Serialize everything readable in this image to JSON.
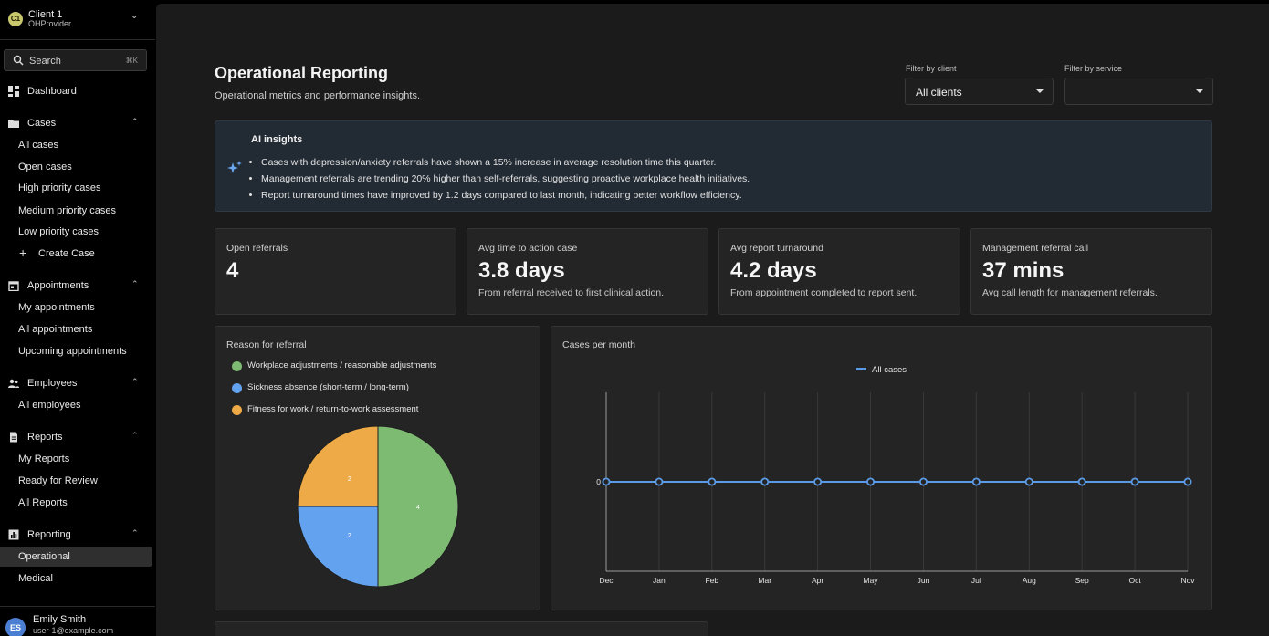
{
  "client": {
    "badge": "C1",
    "name": "Client 1",
    "provider": "OHProvider"
  },
  "search": {
    "label": "Search",
    "shortcut": "⌘K"
  },
  "nav": {
    "dashboard": "Dashboard",
    "cases": {
      "label": "Cases",
      "items": [
        "All cases",
        "Open cases",
        "High priority cases",
        "Medium priority cases",
        "Low priority cases",
        "Create Case"
      ]
    },
    "appointments": {
      "label": "Appointments",
      "items": [
        "My appointments",
        "All appointments",
        "Upcoming appointments"
      ]
    },
    "employees": {
      "label": "Employees",
      "items": [
        "All employees"
      ]
    },
    "reports": {
      "label": "Reports",
      "items": [
        "My Reports",
        "Ready for Review",
        "All Reports"
      ]
    },
    "reporting": {
      "label": "Reporting",
      "items": [
        "Operational",
        "Medical"
      ]
    }
  },
  "user": {
    "initials": "ES",
    "name": "Emily Smith",
    "email": "user-1@example.com"
  },
  "page": {
    "title": "Operational Reporting",
    "subtitle": "Operational metrics and performance insights."
  },
  "filters": {
    "client": {
      "label": "Filter by client",
      "value": "All clients"
    },
    "service": {
      "label": "Filter by service",
      "value": ""
    }
  },
  "insights": {
    "title": "AI insights",
    "items": [
      "Cases with depression/anxiety referrals have shown a 15% increase in average resolution time this quarter.",
      "Management referrals are trending 20% higher than self-referrals, suggesting proactive workplace health initiatives.",
      "Report turnaround times have improved by 1.2 days compared to last month, indicating better workflow efficiency."
    ]
  },
  "kpis": [
    {
      "label": "Open referrals",
      "value": "4",
      "desc": ""
    },
    {
      "label": "Avg time to action case",
      "value": "3.8 days",
      "desc": "From referral received to first clinical action."
    },
    {
      "label": "Avg report turnaround",
      "value": "4.2 days",
      "desc": "From appointment completed to report sent."
    },
    {
      "label": "Management referral call",
      "value": "37 mins",
      "desc": "Avg call length for management referrals."
    }
  ],
  "colors": {
    "green": "#7dbb72",
    "blue": "#63a2ef",
    "orange": "#eeaa47",
    "line": "#5b9be6"
  },
  "chart_data": [
    {
      "type": "pie",
      "title": "Reason for referral",
      "categories": [
        "Workplace adjustments / reasonable adjustments",
        "Sickness absence (short-term / long-term)",
        "Fitness for work / return-to-work assessment"
      ],
      "values": [
        4,
        2,
        2
      ],
      "legend": "top-left"
    },
    {
      "type": "line",
      "title": "Cases per month",
      "x": [
        "Dec",
        "Jan",
        "Feb",
        "Mar",
        "Apr",
        "May",
        "Jun",
        "Jul",
        "Aug",
        "Sep",
        "Oct",
        "Nov"
      ],
      "series": [
        {
          "name": "All cases",
          "values": [
            0,
            0,
            0,
            0,
            0,
            0,
            0,
            0,
            0,
            0,
            0,
            0
          ]
        }
      ],
      "yticks": [
        "0"
      ],
      "grid": true,
      "legend": "top-center"
    }
  ]
}
